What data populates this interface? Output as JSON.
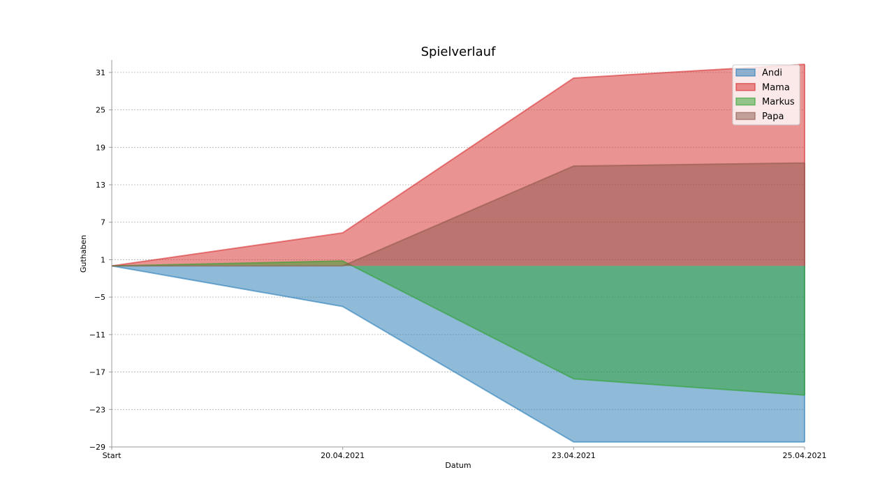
{
  "chart_data": {
    "type": "area",
    "title": "Spielverlauf",
    "xlabel": "Datum",
    "ylabel": "Guthaben",
    "categories": [
      "Start",
      "20.04.2021",
      "23.04.2021",
      "25.04.2021"
    ],
    "yticks": [
      -29,
      -23,
      -17,
      -11,
      -5,
      1,
      7,
      13,
      19,
      25,
      31
    ],
    "ylim": [
      -29,
      33
    ],
    "grid": "horizontal dotted",
    "legend_position": "top-right",
    "series": [
      {
        "name": "Andi",
        "values": [
          0,
          -6.5,
          -28.2,
          -28.2
        ],
        "color": "#1f77b4"
      },
      {
        "name": "Mama",
        "values": [
          0,
          5.3,
          30.1,
          32.3
        ],
        "color": "#d62728"
      },
      {
        "name": "Markus",
        "values": [
          0,
          0.8,
          -18.1,
          -20.7
        ],
        "color": "#2ca02c"
      },
      {
        "name": "Papa",
        "values": [
          0,
          0,
          16.0,
          16.5
        ],
        "color": "#8c564b"
      }
    ]
  }
}
